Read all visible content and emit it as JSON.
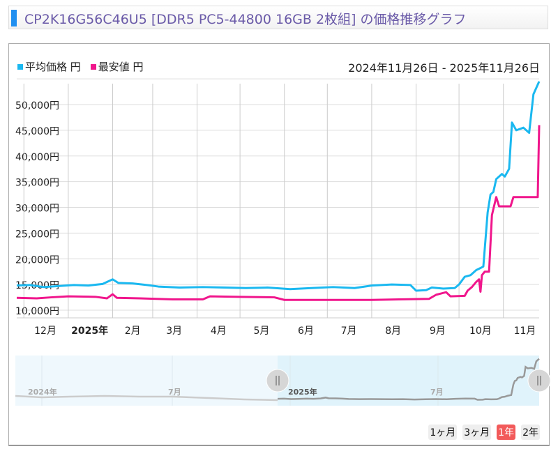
{
  "title": "CP2K16G56C46U5 [DDR5 PC5-44800 16GB 2枚組] の価格推移グラフ",
  "range_label": "2024年11月26日 - 2025年11月26日",
  "colors": {
    "avg": "#1ab8f0",
    "min": "#f0168c",
    "accent": "#1f8ff0",
    "title": "#6a5aa8"
  },
  "range_buttons": [
    {
      "label": "1ヶ月",
      "active": false
    },
    {
      "label": "3ヶ月",
      "active": false
    },
    {
      "label": "1年",
      "active": true
    },
    {
      "label": "2年",
      "active": false
    }
  ],
  "navigator": {
    "labels": [
      "2024年",
      "7月",
      "2025年",
      "7月"
    ]
  },
  "chart_data": {
    "type": "line",
    "xlim": [
      "2024-11-26",
      "2025-11-26"
    ],
    "ylim": [
      10000,
      55000
    ],
    "yticks": [
      "10,000円",
      "15,000円",
      "20,000円",
      "25,000円",
      "30,000円",
      "35,000円",
      "40,000円",
      "45,000円",
      "50,000円"
    ],
    "ytick_values": [
      10000,
      15000,
      20000,
      25000,
      30000,
      35000,
      40000,
      45000,
      50000
    ],
    "xticks": [
      {
        "label": "12月",
        "date": "2024-12-16",
        "bold": false
      },
      {
        "label": "2025年",
        "date": "2025-01-16",
        "bold": true
      },
      {
        "label": "2月",
        "date": "2025-02-15",
        "bold": false
      },
      {
        "label": "3月",
        "date": "2025-03-16",
        "bold": false
      },
      {
        "label": "4月",
        "date": "2025-04-16",
        "bold": false
      },
      {
        "label": "5月",
        "date": "2025-05-16",
        "bold": false
      },
      {
        "label": "6月",
        "date": "2025-06-16",
        "bold": false
      },
      {
        "label": "7月",
        "date": "2025-07-16",
        "bold": false
      },
      {
        "label": "8月",
        "date": "2025-08-16",
        "bold": false
      },
      {
        "label": "9月",
        "date": "2025-09-16",
        "bold": false
      },
      {
        "label": "10月",
        "date": "2025-10-16",
        "bold": false
      },
      {
        "label": "11月",
        "date": "2025-11-16",
        "bold": false
      }
    ],
    "grid": true,
    "legend": "top-left",
    "series": [
      {
        "name": "平均価格 円",
        "color": "#1ab8f0",
        "points": [
          [
            "2024-11-26",
            14800
          ],
          [
            "2024-12-05",
            14900
          ],
          [
            "2024-12-15",
            14500
          ],
          [
            "2024-12-25",
            14700
          ],
          [
            "2025-01-05",
            14900
          ],
          [
            "2025-01-15",
            14800
          ],
          [
            "2025-01-25",
            15100
          ],
          [
            "2025-02-01",
            16000
          ],
          [
            "2025-02-05",
            15300
          ],
          [
            "2025-02-15",
            15200
          ],
          [
            "2025-02-25",
            14900
          ],
          [
            "2025-03-05",
            14600
          ],
          [
            "2025-03-20",
            14400
          ],
          [
            "2025-04-05",
            14500
          ],
          [
            "2025-04-20",
            14400
          ],
          [
            "2025-05-05",
            14300
          ],
          [
            "2025-05-20",
            14400
          ],
          [
            "2025-06-05",
            14100
          ],
          [
            "2025-06-20",
            14300
          ],
          [
            "2025-07-05",
            14500
          ],
          [
            "2025-07-20",
            14300
          ],
          [
            "2025-08-01",
            14800
          ],
          [
            "2025-08-15",
            15000
          ],
          [
            "2025-08-28",
            14900
          ],
          [
            "2025-09-01",
            13800
          ],
          [
            "2025-09-08",
            13900
          ],
          [
            "2025-09-12",
            14400
          ],
          [
            "2025-09-20",
            14200
          ],
          [
            "2025-09-28",
            14300
          ],
          [
            "2025-10-01",
            15000
          ],
          [
            "2025-10-05",
            16500
          ],
          [
            "2025-10-09",
            16800
          ],
          [
            "2025-10-13",
            17800
          ],
          [
            "2025-10-16",
            18200
          ],
          [
            "2025-10-18",
            18500
          ],
          [
            "2025-10-21",
            29000
          ],
          [
            "2025-10-23",
            32500
          ],
          [
            "2025-10-25",
            33000
          ],
          [
            "2025-10-27",
            35500
          ],
          [
            "2025-10-31",
            36500
          ],
          [
            "2025-11-02",
            36000
          ],
          [
            "2025-11-05",
            37500
          ],
          [
            "2025-11-07",
            46500
          ],
          [
            "2025-11-10",
            45000
          ],
          [
            "2025-11-15",
            45500
          ],
          [
            "2025-11-19",
            44500
          ],
          [
            "2025-11-22",
            52000
          ],
          [
            "2025-11-26",
            54500
          ]
        ]
      },
      {
        "name": "最安値 円",
        "color": "#f0168c",
        "points": [
          [
            "2024-11-26",
            12400
          ],
          [
            "2024-12-10",
            12300
          ],
          [
            "2024-12-20",
            12500
          ],
          [
            "2025-01-01",
            12700
          ],
          [
            "2025-01-20",
            12600
          ],
          [
            "2025-01-28",
            12300
          ],
          [
            "2025-02-01",
            13100
          ],
          [
            "2025-02-04",
            12400
          ],
          [
            "2025-02-20",
            12300
          ],
          [
            "2025-03-15",
            12100
          ],
          [
            "2025-04-05",
            12100
          ],
          [
            "2025-04-10",
            12700
          ],
          [
            "2025-05-01",
            12600
          ],
          [
            "2025-05-25",
            12500
          ],
          [
            "2025-06-01",
            12000
          ],
          [
            "2025-07-01",
            12000
          ],
          [
            "2025-08-01",
            12000
          ],
          [
            "2025-08-20",
            12100
          ],
          [
            "2025-09-10",
            12200
          ],
          [
            "2025-09-15",
            13000
          ],
          [
            "2025-09-22",
            13500
          ],
          [
            "2025-09-25",
            12700
          ],
          [
            "2025-10-05",
            12800
          ],
          [
            "2025-10-07",
            13800
          ],
          [
            "2025-10-10",
            14500
          ],
          [
            "2025-10-13",
            15500
          ],
          [
            "2025-10-15",
            16000
          ],
          [
            "2025-10-16",
            13600
          ],
          [
            "2025-10-17",
            16800
          ],
          [
            "2025-10-19",
            17500
          ],
          [
            "2025-10-22",
            17500
          ],
          [
            "2025-10-24",
            28500
          ],
          [
            "2025-10-27",
            32000
          ],
          [
            "2025-10-29",
            30200
          ],
          [
            "2025-11-06",
            30200
          ],
          [
            "2025-11-08",
            32000
          ],
          [
            "2025-11-25",
            32000
          ],
          [
            "2025-11-26",
            46000
          ]
        ]
      }
    ]
  }
}
